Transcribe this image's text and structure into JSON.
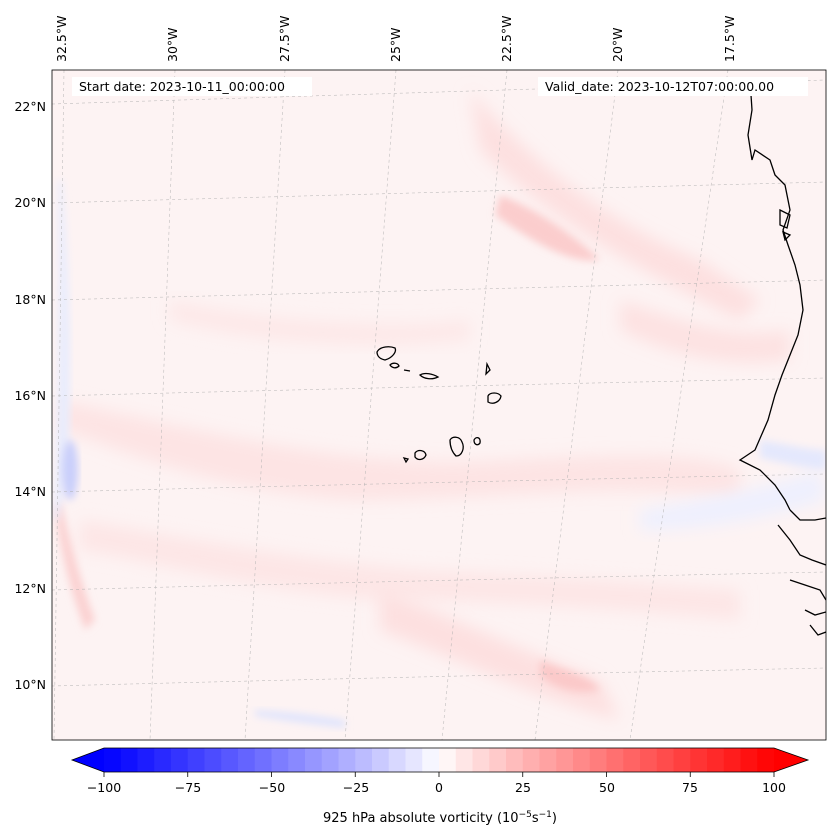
{
  "map": {
    "start_date_label": "Start date: 2023-10-11_00:00:00",
    "valid_date_label": "Valid_date: 2023-10-12T07:00:00.00",
    "lon_ticks": [
      "32.5°W",
      "30°W",
      "27.5°W",
      "25°W",
      "22.5°W",
      "20°W",
      "17.5°W"
    ],
    "lat_ticks": [
      "22°N",
      "20°N",
      "18°N",
      "16°N",
      "14°N",
      "12°N",
      "10°N"
    ]
  },
  "colorbar": {
    "tick_labels": [
      "−100",
      "−75",
      "−50",
      "−25",
      "0",
      "25",
      "50",
      "75",
      "100"
    ],
    "label_prefix": "925 hPa absolute vorticity (10",
    "label_exp1": "−5",
    "label_mid": "s",
    "label_exp2": "−1",
    "label_suffix": ")",
    "min_color": "#0000ff",
    "mid_color": "#ffffff",
    "max_color": "#ff0000"
  }
}
